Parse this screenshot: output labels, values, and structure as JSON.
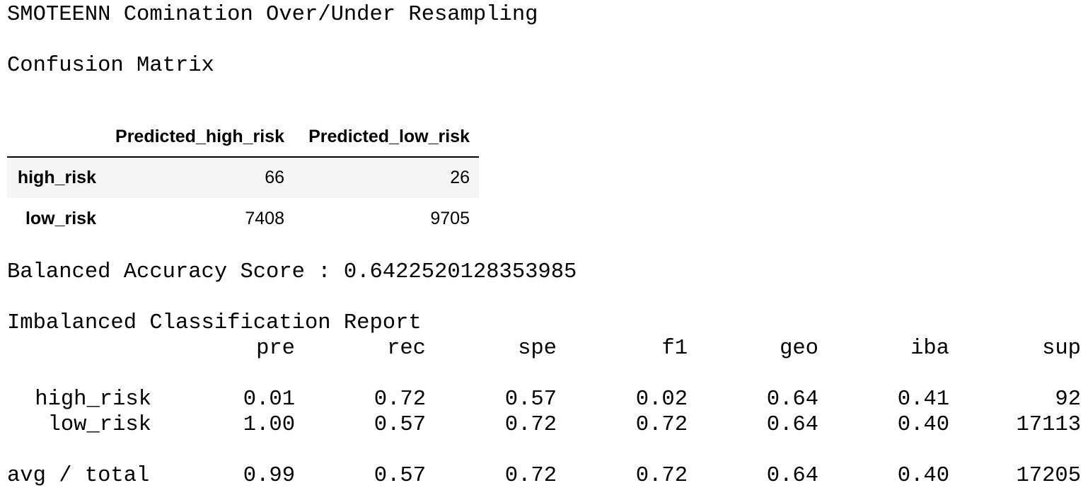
{
  "title": "SMOTEENN Comination Over/Under Resampling",
  "confusion_matrix": {
    "heading": "Confusion Matrix",
    "columns": [
      "",
      "Predicted_high_risk",
      "Predicted_low_risk"
    ],
    "rows": [
      {
        "label": "high_risk",
        "values": [
          "66",
          "26"
        ]
      },
      {
        "label": "low_risk",
        "values": [
          "7408",
          "9705"
        ]
      }
    ]
  },
  "balanced_accuracy": {
    "label": "Balanced Accuracy Score",
    "separator": " : ",
    "value": "0.6422520128353985"
  },
  "report": {
    "heading": "Imbalanced Classification Report",
    "columns": [
      "pre",
      "rec",
      "spe",
      "f1",
      "geo",
      "iba",
      "sup"
    ],
    "rows": [
      {
        "label": "high_risk",
        "values": [
          "0.01",
          "0.72",
          "0.57",
          "0.02",
          "0.64",
          "0.41",
          "92"
        ]
      },
      {
        "label": "low_risk",
        "values": [
          "1.00",
          "0.57",
          "0.72",
          "0.72",
          "0.64",
          "0.40",
          "17113"
        ]
      }
    ],
    "total": {
      "label": "avg / total",
      "values": [
        "0.99",
        "0.57",
        "0.72",
        "0.72",
        "0.64",
        "0.40",
        "17205"
      ]
    }
  }
}
